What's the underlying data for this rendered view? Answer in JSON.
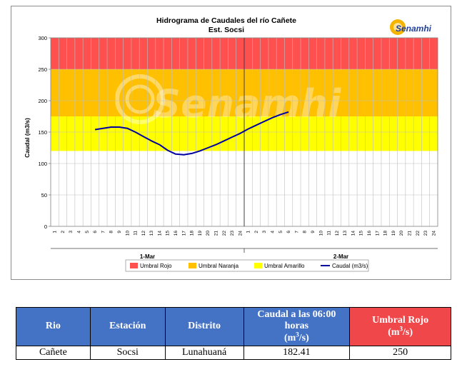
{
  "chart_data": {
    "type": "line",
    "title": "Hidrograma de Caudales  del río Cañete",
    "subtitle": "Est. Socsi",
    "ylabel": "Caudal  (m3/s)",
    "ylim": [
      0,
      300
    ],
    "yticks": [
      0,
      50,
      100,
      150,
      200,
      250,
      300
    ],
    "hours_per_day": 24,
    "x_ticks": [
      "1",
      "2",
      "3",
      "4",
      "5",
      "6",
      "7",
      "8",
      "9",
      "10",
      "11",
      "12",
      "13",
      "14",
      "15",
      "16",
      "17",
      "18",
      "19",
      "20",
      "21",
      "22",
      "23",
      "24",
      "1",
      "2",
      "3",
      "4",
      "5",
      "6",
      "7",
      "8",
      "9",
      "10",
      "11",
      "12",
      "13",
      "14",
      "15",
      "16",
      "17",
      "18",
      "19",
      "20",
      "21",
      "22",
      "23",
      "24"
    ],
    "days": [
      "1-Mar",
      "2-Mar"
    ],
    "thresholds": [
      {
        "name": "Umbral Rojo",
        "from": 250,
        "to": 300,
        "color": "#ff5050"
      },
      {
        "name": "Umbral Naranja",
        "from": 175,
        "to": 250,
        "color": "#ffc000"
      },
      {
        "name": "Umbral Amarillo",
        "from": 120,
        "to": 175,
        "color": "#ffff00"
      }
    ],
    "series": [
      {
        "name": "Caudal (m3/s)",
        "color": "#0000a0",
        "x": [
          6,
          7,
          8,
          9,
          10,
          11,
          12,
          13,
          14,
          15,
          16,
          17,
          18,
          19,
          20,
          21,
          22,
          23,
          24,
          25,
          26,
          27,
          28,
          29,
          30
        ],
        "values": [
          154,
          156,
          158,
          158,
          156,
          150,
          143,
          136,
          130,
          121,
          115,
          114,
          116,
          120,
          125,
          130,
          136,
          142,
          148,
          155,
          161,
          167,
          173,
          178,
          182
        ]
      }
    ],
    "legend": {
      "position": "bottom",
      "items": [
        {
          "label": "Umbral Rojo",
          "color": "#ff5050",
          "kind": "box"
        },
        {
          "label": "Umbral Naranja",
          "color": "#ffc000",
          "kind": "box"
        },
        {
          "label": "Umbral Amarillo",
          "color": "#ffff00",
          "kind": "box"
        },
        {
          "label": "Caudal (m3/s)",
          "color": "#0000a0",
          "kind": "line"
        }
      ]
    },
    "grid": true,
    "divider_at_hour": 24.5
  },
  "logo": {
    "text": "Senamhi",
    "watermark": "Senamhi"
  },
  "table": {
    "headers": {
      "rio": "Rio",
      "estacion": "Estación",
      "distrito": "Distrito",
      "caudal": "Caudal a las 06:00 horas (m3/s)",
      "umbral": "Umbral Rojo (m3/s)"
    },
    "row": {
      "rio": "Cañete",
      "estacion": "Socsi",
      "distrito": "Lunahuaná",
      "caudal": "182.41",
      "umbral": "250"
    }
  }
}
